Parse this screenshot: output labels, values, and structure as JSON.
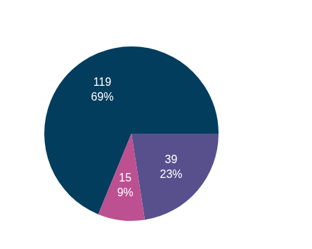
{
  "chart_data": {
    "type": "pie",
    "values": [
      119,
      39,
      15
    ],
    "value_labels": [
      [
        "119",
        "69%"
      ],
      [
        "39",
        "23%"
      ],
      [
        "15",
        "9%"
      ]
    ],
    "colors": [
      "#033d5d",
      "#58508d",
      "#bc5090"
    ],
    "data_labels": true,
    "legend": false
  }
}
